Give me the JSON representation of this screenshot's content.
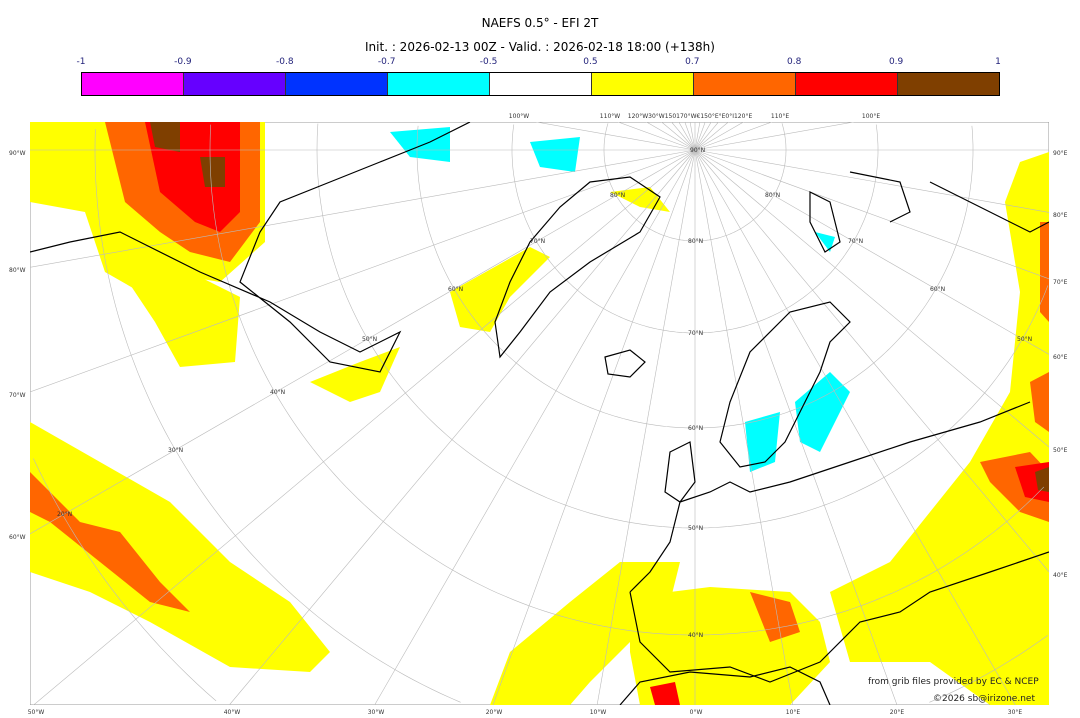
{
  "title": "NAEFS 0.5° - EFI 2T",
  "subtitle": "Init. : 2026-02-13 00Z - Valid. : 2026-02-18 18:00 (+138h)",
  "colorbar": {
    "ticks": [
      "-1",
      "-0.9",
      "-0.8",
      "-0.7",
      "-0.5",
      "0.5",
      "0.7",
      "0.8",
      "0.9",
      "1"
    ],
    "colors": [
      "#ff00ff",
      "#6600ff",
      "#0033ff",
      "#00ffff",
      "#ffffff",
      "#ffff00",
      "#ff6600",
      "#ff0000",
      "#7f3f00"
    ]
  },
  "axes": {
    "top": [
      "100°W",
      "110°W",
      "120°W30°W150170°W€150°E°E0°I120°E",
      "110°E",
      "100°E"
    ],
    "bottom": [
      "50°W",
      "40°W",
      "30°W",
      "20°W",
      "10°W",
      "0°W",
      "10°E",
      "20°E",
      "30°E"
    ],
    "left": [
      "90°W",
      "80°W",
      "70°W",
      "60°W"
    ],
    "right": [
      "90°E",
      "80°E",
      "70°E",
      "60°E",
      "50°E",
      "40°E"
    ]
  },
  "grid_labels": [
    "90°N",
    "80°N",
    "70°N",
    "60°N",
    "50°N",
    "40°N",
    "30°N",
    "20°N",
    "80°N",
    "70°N",
    "60°N",
    "50°N",
    "80°N",
    "70°N",
    "60°N",
    "50°N",
    "40°N"
  ],
  "credits": {
    "source": "from grib files provided by EC & NCEP",
    "copyright": "©2026 sb@irizone.net"
  }
}
